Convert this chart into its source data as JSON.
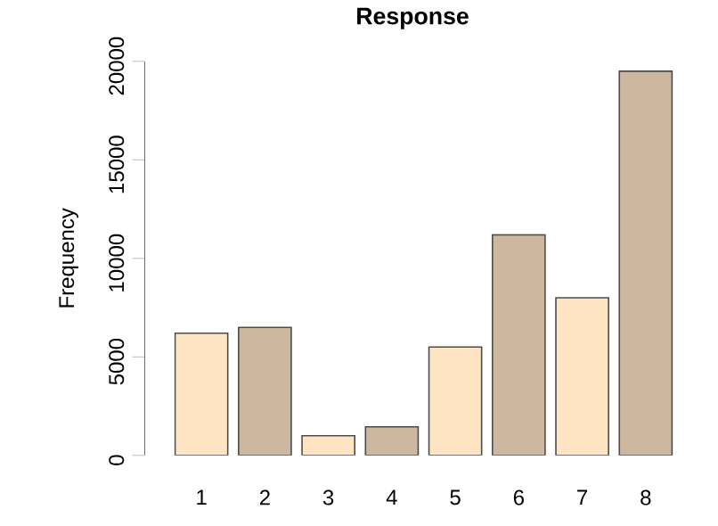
{
  "chart_data": {
    "type": "bar",
    "title": "**Response**",
    "ylabel": "Frequency",
    "categories": [
      "1",
      "2",
      "3",
      "4",
      "5",
      "6",
      "7",
      "8"
    ],
    "values": [
      6200,
      6500,
      1000,
      1450,
      5500,
      11200,
      8000,
      19500
    ],
    "colors": [
      "#ffe4c4",
      "#cdb79e",
      "#ffe4c4",
      "#cdb79e",
      "#ffe4c4",
      "#cdb79e",
      "#ffe4c4",
      "#cdb79e"
    ],
    "ylim": [
      0,
      20000
    ],
    "yticks": [
      0,
      5000,
      10000,
      15000,
      20000
    ]
  }
}
